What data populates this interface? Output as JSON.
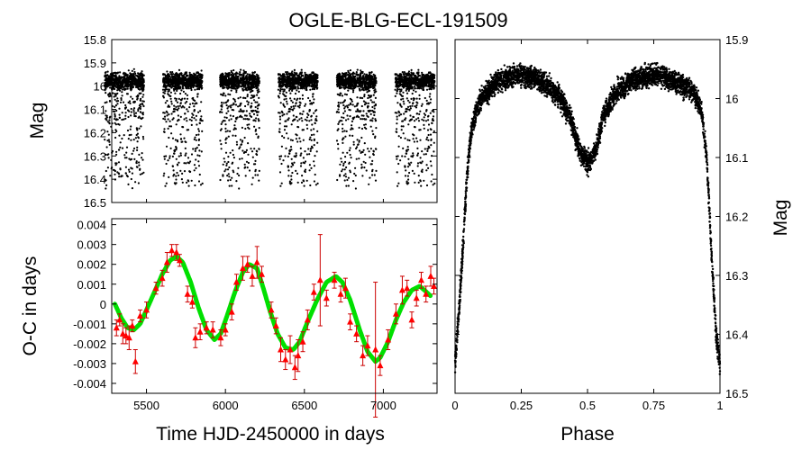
{
  "title": "OGLE-BLG-ECL-191509",
  "colors": {
    "points": "#000000",
    "oc_points": "#ff0000",
    "oc_errorbars": "#cc0000",
    "fit": "#00e000"
  },
  "chart_data": [
    {
      "id": "lightcurve",
      "type": "scatter",
      "title": "",
      "xlabel": "",
      "ylabel": "Mag",
      "xlim": [
        5280,
        7340
      ],
      "ylim": [
        15.8,
        16.5
      ],
      "y_inverted": true,
      "yticks": [
        "15.8",
        "15.9",
        "16",
        "16.1",
        "16.2",
        "16.3",
        "16.4",
        "16.5"
      ],
      "season_centers": [
        5360,
        5730,
        6090,
        6460,
        6830,
        7200
      ],
      "season_halfwidth": 125,
      "baseline_mag": 15.98,
      "eclipse_depth_mag": 0.45
    },
    {
      "id": "phased",
      "type": "scatter",
      "title": "",
      "xlabel": "Phase",
      "ylabel": "Mag",
      "xlim": [
        0,
        1
      ],
      "ylim": [
        15.9,
        16.5
      ],
      "y_inverted": true,
      "xticks": [
        "0",
        "0.25",
        "0.5",
        "0.75",
        "1"
      ],
      "yticks": [
        "15.9",
        "16",
        "16.1",
        "16.2",
        "16.3",
        "16.4",
        "16.5"
      ],
      "curve": {
        "phase": [
          0,
          0.015,
          0.03,
          0.045,
          0.06,
          0.08,
          0.1,
          0.15,
          0.2,
          0.25,
          0.3,
          0.35,
          0.4,
          0.44,
          0.47,
          0.5,
          0.53,
          0.56,
          0.6,
          0.65,
          0.7,
          0.75,
          0.8,
          0.85,
          0.9,
          0.93,
          0.95,
          0.97,
          0.985,
          1.0
        ],
        "mag": [
          16.45,
          16.36,
          16.25,
          16.13,
          16.06,
          16.02,
          16.0,
          15.975,
          15.965,
          15.96,
          15.965,
          15.98,
          16.0,
          16.04,
          16.09,
          16.11,
          16.09,
          16.03,
          15.995,
          15.975,
          15.965,
          15.96,
          15.965,
          15.975,
          15.99,
          16.02,
          16.1,
          16.28,
          16.4,
          16.45
        ]
      }
    },
    {
      "id": "oc",
      "type": "scatter",
      "title": "",
      "xlabel": "Time HJD-2450000 in days",
      "ylabel": "O-C in days",
      "xlim": [
        5280,
        7340
      ],
      "ylim": [
        -0.0045,
        0.0043
      ],
      "xticks": [
        "5500",
        "6000",
        "6500",
        "7000"
      ],
      "yticks": [
        "0.004",
        "0.003",
        "0.002",
        "0.001",
        "0",
        "-0.001",
        "-0.002",
        "-0.003",
        "-0.004"
      ],
      "fit": {
        "x": [
          5300,
          5340,
          5380,
          5420,
          5460,
          5500,
          5550,
          5600,
          5650,
          5690,
          5730,
          5780,
          5830,
          5880,
          5930,
          5970,
          6010,
          6060,
          6110,
          6150,
          6200,
          6240,
          6280,
          6330,
          6380,
          6430,
          6470,
          6520,
          6580,
          6640,
          6700,
          6740,
          6790,
          6850,
          6900,
          6950,
          6980,
          7030,
          7080,
          7130,
          7180,
          7230,
          7260,
          7300
        ],
        "y": [
          0.0,
          -0.0007,
          -0.0012,
          -0.0013,
          -0.001,
          -0.0003,
          0.0006,
          0.0015,
          0.0022,
          0.0024,
          0.0021,
          0.0011,
          -0.0002,
          -0.0013,
          -0.0018,
          -0.0015,
          -0.0006,
          0.0006,
          0.0016,
          0.002,
          0.0018,
          0.0008,
          -0.0003,
          -0.0015,
          -0.0022,
          -0.0023,
          -0.0019,
          -0.0009,
          0.0002,
          0.0011,
          0.0014,
          0.0011,
          0.0002,
          -0.0013,
          -0.0024,
          -0.0029,
          -0.0027,
          -0.0019,
          -0.0008,
          0.0001,
          0.0007,
          0.0009,
          0.0007,
          0.0004
        ]
      },
      "points": [
        [
          5310,
          -0.0012,
          0.0004
        ],
        [
          5330,
          -0.0008,
          0.0003
        ],
        [
          5350,
          -0.0015,
          0.0005
        ],
        [
          5370,
          -0.0016,
          0.0004
        ],
        [
          5390,
          -0.0017,
          0.0006
        ],
        [
          5410,
          -0.0011,
          0.0003
        ],
        [
          5430,
          -0.0029,
          0.0006
        ],
        [
          5460,
          -0.0006,
          0.0003
        ],
        [
          5500,
          -0.0003,
          0.0004
        ],
        [
          5560,
          0.0008,
          0.0003
        ],
        [
          5600,
          0.0013,
          0.0004
        ],
        [
          5630,
          0.0021,
          0.0005
        ],
        [
          5660,
          0.0027,
          0.0003
        ],
        [
          5690,
          0.0026,
          0.0004
        ],
        [
          5710,
          0.0022,
          0.0003
        ],
        [
          5760,
          0.0005,
          0.0004
        ],
        [
          5790,
          0.0001,
          0.0003
        ],
        [
          5810,
          -0.0017,
          0.0005
        ],
        [
          5840,
          -0.0014,
          0.0004
        ],
        [
          5880,
          -0.0012,
          0.0003
        ],
        [
          5920,
          -0.0013,
          0.0004
        ],
        [
          5970,
          -0.0017,
          0.0004
        ],
        [
          6000,
          -0.0013,
          0.0003
        ],
        [
          6040,
          -0.0004,
          0.0004
        ],
        [
          6070,
          0.0011,
          0.0004
        ],
        [
          6110,
          0.0018,
          0.0006
        ],
        [
          6140,
          0.002,
          0.0004
        ],
        [
          6170,
          0.0014,
          0.0005
        ],
        [
          6200,
          0.0021,
          0.0008
        ],
        [
          6230,
          0.0015,
          0.0004
        ],
        [
          6290,
          -0.0003,
          0.0004
        ],
        [
          6320,
          -0.0011,
          0.0004
        ],
        [
          6350,
          -0.0023,
          0.0006
        ],
        [
          6380,
          -0.0028,
          0.0005
        ],
        [
          6410,
          -0.0023,
          0.0007
        ],
        [
          6440,
          -0.0032,
          0.0006
        ],
        [
          6460,
          -0.0026,
          0.0008
        ],
        [
          6490,
          -0.0019,
          0.0005
        ],
        [
          6520,
          -0.0008,
          0.0005
        ],
        [
          6560,
          0.0006,
          0.0004
        ],
        [
          6600,
          0.0012,
          0.0023
        ],
        [
          6640,
          0.0003,
          0.0004
        ],
        [
          6690,
          0.0012,
          0.0004
        ],
        [
          6730,
          0.0005,
          0.0004
        ],
        [
          6760,
          0.0008,
          0.0005
        ],
        [
          6790,
          -0.0009,
          0.0004
        ],
        [
          6830,
          -0.0015,
          0.0004
        ],
        [
          6870,
          -0.0026,
          0.0005
        ],
        [
          6900,
          -0.0021,
          0.0005
        ],
        [
          6950,
          -0.0023,
          0.0034
        ],
        [
          6980,
          -0.0031,
          0.0005
        ],
        [
          7030,
          -0.0018,
          0.0005
        ],
        [
          7080,
          -0.0005,
          0.0005
        ],
        [
          7120,
          0.0007,
          0.0007
        ],
        [
          7150,
          0.0008,
          0.0004
        ],
        [
          7180,
          -0.0008,
          0.0004
        ],
        [
          7210,
          0.0003,
          0.0004
        ],
        [
          7240,
          0.0012,
          0.0004
        ],
        [
          7270,
          0.0005,
          0.0004
        ],
        [
          7300,
          0.0014,
          0.0005
        ],
        [
          7320,
          0.0009,
          0.0004
        ]
      ]
    }
  ]
}
